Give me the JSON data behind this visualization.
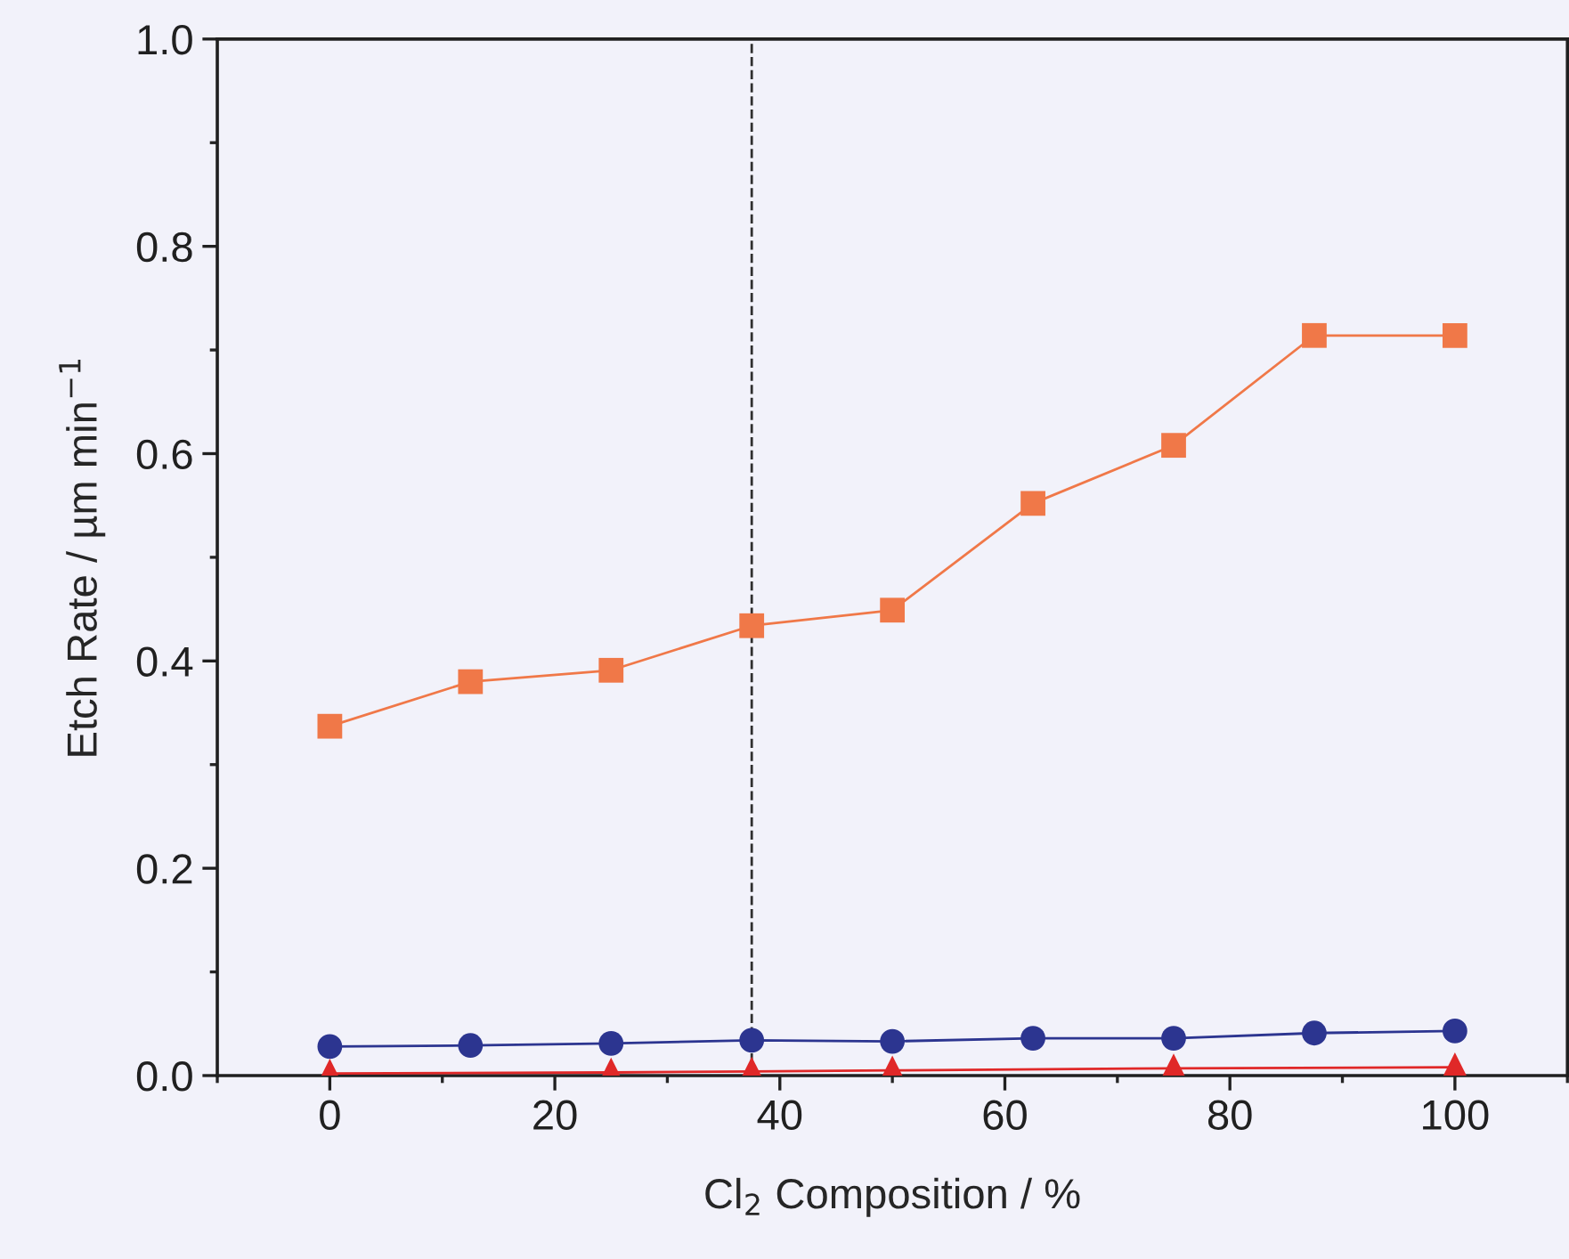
{
  "chart_data": {
    "type": "line",
    "xlabel": "Cl$_{2}$ Composition / %",
    "ylabel": "Etch Rate / µm min$^{−1}$",
    "xlim": [
      -10,
      110
    ],
    "ylim": [
      0,
      1.0
    ],
    "xticks": [
      0,
      20,
      40,
      60,
      80,
      100
    ],
    "yticks": [
      {
        "value": 0,
        "label": "0.0"
      },
      0.2,
      0.4,
      0.6,
      0.8,
      {
        "value": 1.0,
        "label": "1.0"
      }
    ],
    "grid": false,
    "line_style": "solid",
    "series": [
      {
        "color": "#f07848",
        "marker": "square",
        "x": [
          0,
          12.5,
          25,
          37.5,
          50,
          62.5,
          75,
          87.5,
          100
        ],
        "values": [
          0.337,
          0.38,
          0.391,
          0.434,
          0.449,
          0.552,
          0.608,
          0.714,
          0.714
        ]
      },
      {
        "color": "#2c3590",
        "marker": "circle",
        "x": [
          0,
          12.5,
          25,
          37.5,
          50,
          62.5,
          75,
          87.5,
          100
        ],
        "values": [
          0.028,
          0.029,
          0.031,
          0.034,
          0.033,
          0.036,
          0.036,
          0.041,
          0.043
        ]
      },
      {
        "color": "#e02828",
        "marker": "triangle",
        "x": [
          0,
          25,
          37.5,
          50,
          75,
          100
        ],
        "values": [
          0.002,
          0.003,
          0.004,
          0.005,
          0.007,
          0.008
        ]
      }
    ],
    "ref_lines": [
      {
        "axis": "x",
        "value": 37.5,
        "color": "#303030",
        "line_style": "dashed"
      }
    ]
  }
}
